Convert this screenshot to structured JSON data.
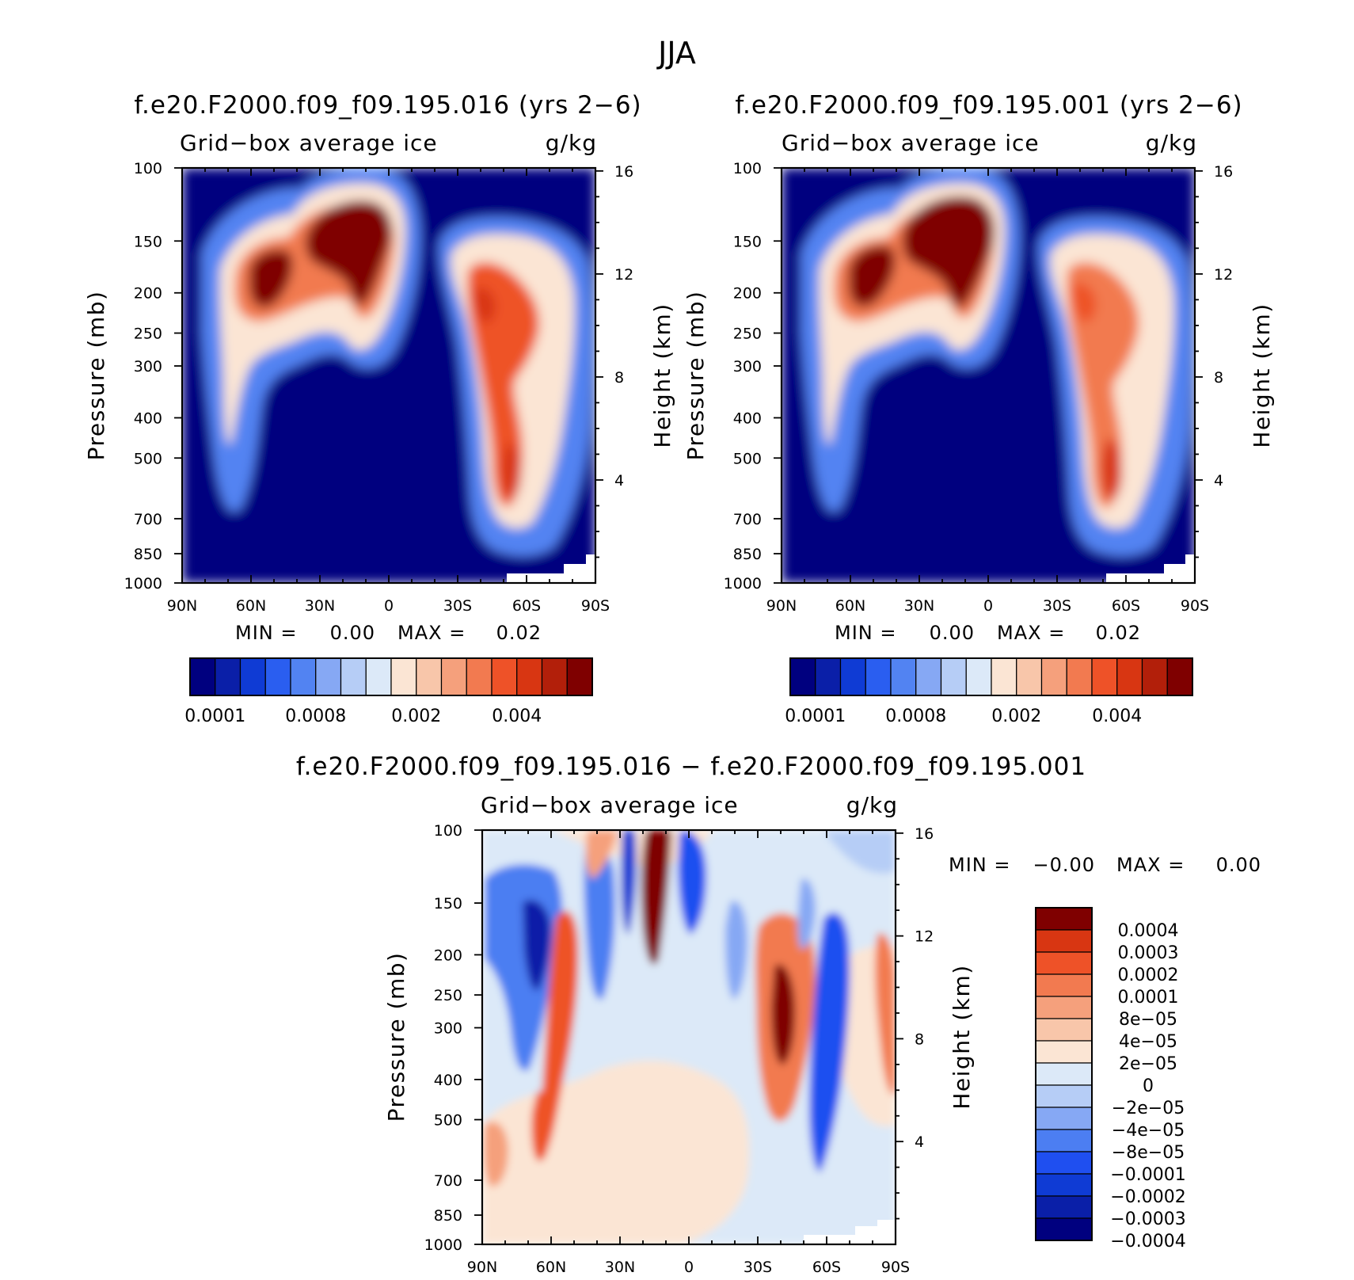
{
  "figure": {
    "main_title": "JJA"
  },
  "palettes": {
    "field": [
      "#00007f",
      "#0a1fa8",
      "#0f3bd4",
      "#2a5ef0",
      "#5283f2",
      "#86a8f4",
      "#b6cdf6",
      "#dce9f8",
      "#fbe5d4",
      "#f8c6aa",
      "#f5a07c",
      "#f27a50",
      "#ee5228",
      "#d83612",
      "#b21f0a",
      "#7f0000"
    ],
    "diff": [
      "#00007f",
      "#0a1fa8",
      "#0f3bd4",
      "#1f4ff0",
      "#4c7ef2",
      "#86a8f4",
      "#b6cdf6",
      "#dce9f8",
      "#fbe5d4",
      "#f8c6aa",
      "#f5a07c",
      "#f27a50",
      "#ee5228",
      "#d83612",
      "#7f0000"
    ]
  },
  "chart_data": [
    {
      "type": "heatmap",
      "id": "left",
      "title": "f.e20.F2000.f09_f09.195.016 (yrs 2−6)",
      "subtitle_left": "Grid−box average ice",
      "subtitle_right": "g/kg",
      "xlabel": "",
      "ylabel": "Pressure (mb)",
      "ylabel_right": "Height (km)",
      "x_ticks": [
        "90N",
        "60N",
        "30N",
        "0",
        "30S",
        "60S",
        "90S"
      ],
      "x_values": [
        90,
        60,
        30,
        0,
        -30,
        -60,
        -90
      ],
      "y_ticks": [
        "100",
        "150",
        "200",
        "250",
        "300",
        "400",
        "500",
        "700",
        "850",
        "1000"
      ],
      "y_values": [
        100,
        150,
        200,
        250,
        300,
        400,
        500,
        700,
        850,
        1000
      ],
      "y_right_ticks": [
        "16",
        "12",
        "8",
        "4"
      ],
      "y_right_values": [
        16,
        12,
        8,
        4
      ],
      "ylog": true,
      "xlim": [
        90,
        -90
      ],
      "ylim": [
        1000,
        100
      ],
      "min_label": "MIN =",
      "min_value": "0.00",
      "max_label": "MAX =",
      "max_value": "0.02",
      "colorbar_labels": [
        "0.0001",
        "0.0008",
        "0.002",
        "0.004"
      ],
      "colorbar_label_bins": [
        1,
        5,
        9,
        13
      ]
    },
    {
      "type": "heatmap",
      "id": "right",
      "title": "f.e20.F2000.f09_f09.195.001 (yrs 2−6)",
      "subtitle_left": "Grid−box average ice",
      "subtitle_right": "g/kg",
      "xlabel": "",
      "ylabel": "Pressure (mb)",
      "ylabel_right": "Height (km)",
      "x_ticks": [
        "90N",
        "60N",
        "30N",
        "0",
        "30S",
        "60S",
        "90S"
      ],
      "x_values": [
        90,
        60,
        30,
        0,
        -30,
        -60,
        -90
      ],
      "y_ticks": [
        "100",
        "150",
        "200",
        "250",
        "300",
        "400",
        "500",
        "700",
        "850",
        "1000"
      ],
      "y_values": [
        100,
        150,
        200,
        250,
        300,
        400,
        500,
        700,
        850,
        1000
      ],
      "y_right_ticks": [
        "16",
        "12",
        "8",
        "4"
      ],
      "y_right_values": [
        16,
        12,
        8,
        4
      ],
      "ylog": true,
      "xlim": [
        90,
        -90
      ],
      "ylim": [
        1000,
        100
      ],
      "min_label": "MIN =",
      "min_value": "0.00",
      "max_label": "MAX =",
      "max_value": "0.02",
      "colorbar_labels": [
        "0.0001",
        "0.0008",
        "0.002",
        "0.004"
      ],
      "colorbar_label_bins": [
        1,
        5,
        9,
        13
      ]
    },
    {
      "type": "heatmap",
      "id": "diff",
      "title": "f.e20.F2000.f09_f09.195.016 − f.e20.F2000.f09_f09.195.001",
      "subtitle_left": "Grid−box average ice",
      "subtitle_right": "g/kg",
      "xlabel": "",
      "ylabel": "Pressure (mb)",
      "ylabel_right": "Height (km)",
      "x_ticks": [
        "90N",
        "60N",
        "30N",
        "0",
        "30S",
        "60S",
        "90S"
      ],
      "x_values": [
        90,
        60,
        30,
        0,
        -30,
        -60,
        -90
      ],
      "y_ticks": [
        "100",
        "150",
        "200",
        "250",
        "300",
        "400",
        "500",
        "700",
        "850",
        "1000"
      ],
      "y_values": [
        100,
        150,
        200,
        250,
        300,
        400,
        500,
        700,
        850,
        1000
      ],
      "y_right_ticks": [
        "16",
        "12",
        "8",
        "4"
      ],
      "y_right_values": [
        16,
        12,
        8,
        4
      ],
      "ylog": true,
      "xlim": [
        90,
        -90
      ],
      "ylim": [
        1000,
        100
      ],
      "min_label": "MIN =",
      "min_value": "−0.00",
      "max_label": "MAX =",
      "max_value": "0.00",
      "colorbar_labels": [
        "0.0004",
        "0.0003",
        "0.0002",
        "0.0001",
        "8e−05",
        "4e−05",
        "2e−05",
        "0",
        "−2e−05",
        "−4e−05",
        "−8e−05",
        "−0.0001",
        "−0.0002",
        "−0.0003",
        "−0.0004"
      ]
    }
  ]
}
